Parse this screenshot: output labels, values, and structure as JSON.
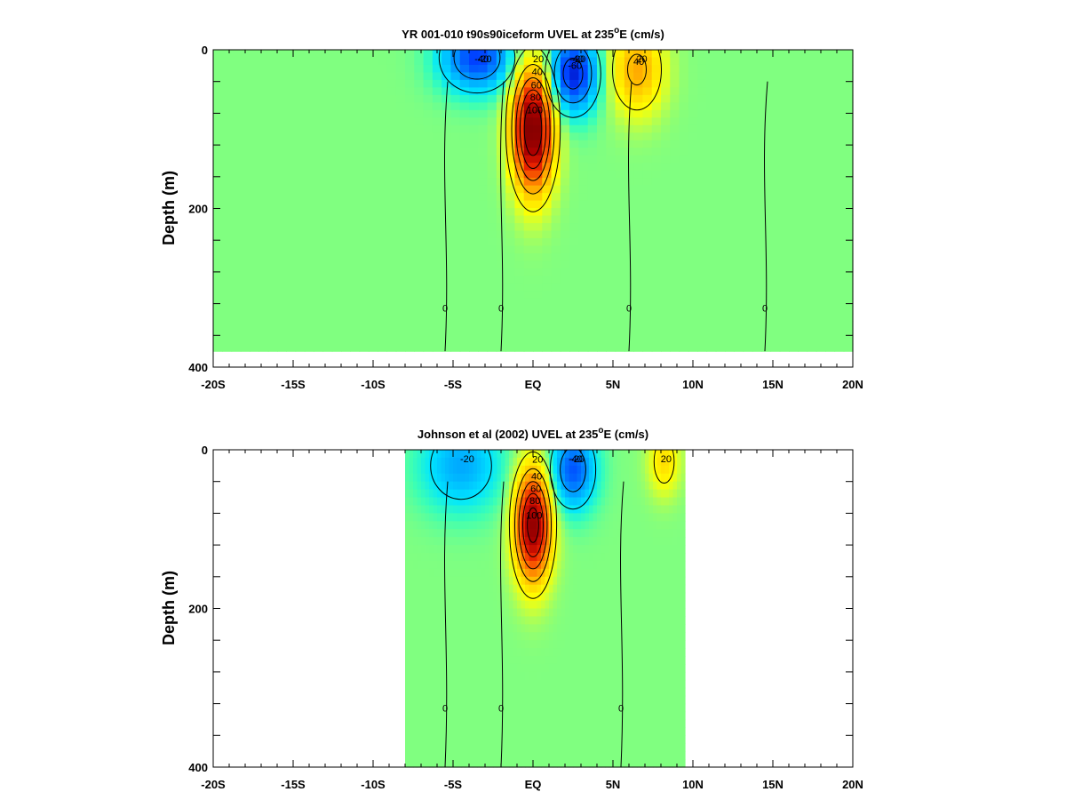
{
  "colors": {
    "background": "#80ff80",
    "axis": "#000000"
  },
  "chart_data": [
    {
      "type": "heatmap",
      "title_pre": "YR 001-010 t90s90iceform UVEL at 235",
      "title_sup": "o",
      "title_post": "E (cm/s)",
      "xlabel": "",
      "ylabel": "Depth (m)",
      "x_ticks": [
        "-20S",
        "-15S",
        "-10S",
        "-5S",
        "EQ",
        "5N",
        "10N",
        "15N",
        "20N"
      ],
      "y_ticks": [
        "0",
        "200",
        "400"
      ],
      "xlim": [
        -20,
        20
      ],
      "ylim": [
        0,
        400
      ],
      "data_extent": {
        "lat": [
          -20,
          20
        ],
        "depth": [
          0,
          380
        ]
      },
      "colormap": "blue-cyan-green-yellow-red",
      "features": [
        {
          "kind": "eastward-jet",
          "lat": 0,
          "depth": 100,
          "peak": 120,
          "lat_width": 0.9,
          "depth_width": 55,
          "contour_labels": [
            "100",
            "80",
            "60",
            "40",
            "20"
          ]
        },
        {
          "kind": "westward-jet",
          "lat": 2.5,
          "depth": 30,
          "peak": -70,
          "lat_width": 1.1,
          "depth_width": 35,
          "contour_labels": [
            "-60",
            "-40",
            "-20"
          ]
        },
        {
          "kind": "westward-jet",
          "lat": -3.5,
          "depth": 10,
          "peak": -60,
          "lat_width": 1.6,
          "depth_width": 30,
          "contour_labels": [
            "-40",
            "-20"
          ]
        },
        {
          "kind": "eastward-jet",
          "lat": 6.5,
          "depth": 25,
          "peak": 45,
          "lat_width": 1.2,
          "depth_width": 40,
          "contour_labels": [
            "40",
            "20"
          ]
        },
        {
          "kind": "zero-contour",
          "contour_labels": [
            "0"
          ]
        }
      ]
    },
    {
      "type": "heatmap",
      "title_pre": "Johnson et al (2002) UVEL at 235",
      "title_sup": "o",
      "title_post": "E (cm/s)",
      "xlabel": "",
      "ylabel": "Depth (m)",
      "x_ticks": [
        "-20S",
        "-15S",
        "-10S",
        "-5S",
        "EQ",
        "5N",
        "10N",
        "15N",
        "20N"
      ],
      "y_ticks": [
        "0",
        "200",
        "400"
      ],
      "xlim": [
        -20,
        20
      ],
      "ylim": [
        0,
        400
      ],
      "data_extent": {
        "lat": [
          -8,
          9.5
        ],
        "depth": [
          0,
          400
        ]
      },
      "colormap": "blue-cyan-green-yellow-red",
      "features": [
        {
          "kind": "eastward-jet",
          "lat": 0,
          "depth": 95,
          "peak": 110,
          "lat_width": 0.8,
          "depth_width": 50,
          "contour_labels": [
            "100",
            "80",
            "60",
            "40",
            "20"
          ]
        },
        {
          "kind": "westward-jet",
          "lat": 2.5,
          "depth": 25,
          "peak": -55,
          "lat_width": 1.0,
          "depth_width": 35,
          "contour_labels": [
            "-40",
            "-20"
          ]
        },
        {
          "kind": "westward-jet",
          "lat": -4.5,
          "depth": 20,
          "peak": -35,
          "lat_width": 1.8,
          "depth_width": 40,
          "contour_labels": [
            "-20"
          ]
        },
        {
          "kind": "eastward-jet",
          "lat": 8.2,
          "depth": 15,
          "peak": 30,
          "lat_width": 0.7,
          "depth_width": 30,
          "contour_labels": [
            "20"
          ]
        },
        {
          "kind": "zero-contour",
          "contour_labels": [
            "0"
          ]
        }
      ]
    }
  ]
}
